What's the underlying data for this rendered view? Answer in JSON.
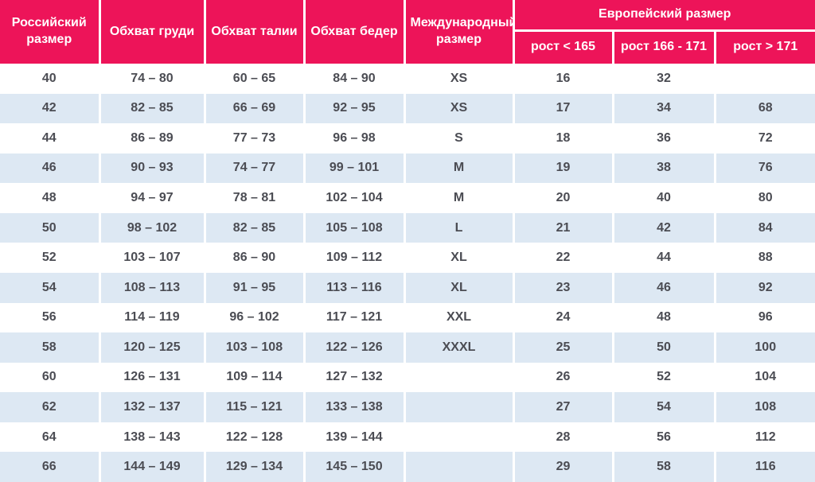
{
  "colors": {
    "header_bg": "#ED1459",
    "header_text": "#FFFFFF",
    "row_alt_bg": "#DDE8F3",
    "row_bg": "#FFFFFF",
    "cell_text": "#4B4C53"
  },
  "chart_data": {
    "type": "table",
    "header": {
      "russian_size": "Российский размер",
      "chest": "Обхват груди",
      "waist": "Обхват талии",
      "hips": "Обхват бедер",
      "international_size": "Международный размер",
      "european_size": "Европейский размер",
      "height_lt_165": "рост < 165",
      "height_166_171": "рост 166 - 171",
      "height_gt_171": "рост > 171"
    },
    "rows": [
      [
        "40",
        "74 – 80",
        "60 – 65",
        "84 – 90",
        "XS",
        "16",
        "32",
        ""
      ],
      [
        "42",
        "82 – 85",
        "66 – 69",
        "92 – 95",
        "XS",
        "17",
        "34",
        "68"
      ],
      [
        "44",
        "86 – 89",
        "77 – 73",
        "96 – 98",
        "S",
        "18",
        "36",
        "72"
      ],
      [
        "46",
        "90 – 93",
        "74 – 77",
        "99 – 101",
        "M",
        "19",
        "38",
        "76"
      ],
      [
        "48",
        "94 – 97",
        "78 – 81",
        "102 – 104",
        "M",
        "20",
        "40",
        "80"
      ],
      [
        "50",
        "98 – 102",
        "82 – 85",
        "105 – 108",
        "L",
        "21",
        "42",
        "84"
      ],
      [
        "52",
        "103 – 107",
        "86 – 90",
        "109 – 112",
        "XL",
        "22",
        "44",
        "88"
      ],
      [
        "54",
        "108 – 113",
        "91 – 95",
        "113 – 116",
        "XL",
        "23",
        "46",
        "92"
      ],
      [
        "56",
        "114 – 119",
        "96 – 102",
        "117 – 121",
        "XXL",
        "24",
        "48",
        "96"
      ],
      [
        "58",
        "120 – 125",
        "103 – 108",
        "122 – 126",
        "XXXL",
        "25",
        "50",
        "100"
      ],
      [
        "60",
        "126 – 131",
        "109 – 114",
        "127 – 132",
        "",
        "26",
        "52",
        "104"
      ],
      [
        "62",
        "132 – 137",
        "115 – 121",
        "133 – 138",
        "",
        "27",
        "54",
        "108"
      ],
      [
        "64",
        "138 – 143",
        "122 – 128",
        "139 – 144",
        "",
        "28",
        "56",
        "112"
      ],
      [
        "66",
        "144 – 149",
        "129 – 134",
        "145 – 150",
        "",
        "29",
        "58",
        "116"
      ]
    ]
  }
}
